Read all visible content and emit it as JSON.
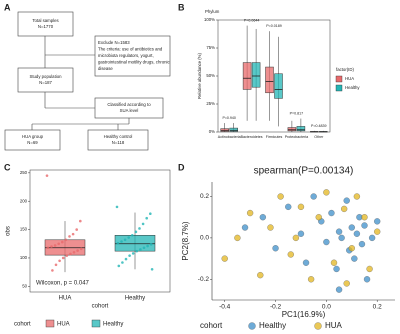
{
  "panel_labels": [
    "A",
    "B",
    "C",
    "D"
  ],
  "flowchart": {
    "nodes": [
      {
        "lines": [
          "Total samples",
          "N=1770"
        ]
      },
      {
        "lines": [
          "Exclude N=1583",
          "The criteria: use of antibiotics and",
          "microbiota regulators, yogurt,",
          "gastrointestinal motility drugs, chronic",
          "disease"
        ]
      },
      {
        "lines": [
          "Study population",
          "N=187"
        ]
      },
      {
        "lines": [
          "Classified according to",
          "SUA level"
        ]
      },
      {
        "lines": [
          "HUA group",
          "N=69"
        ]
      },
      {
        "lines": [
          "Healthy control",
          "N=118"
        ]
      }
    ]
  },
  "chart_data": [
    {
      "type": "box",
      "subtitle": "Phylum",
      "y_label": "Relative abundance (%)",
      "categories": [
        "Actinobacteria",
        "Bacteroidetes",
        "Firmicutes",
        "Proteobacteria",
        "Other"
      ],
      "annotations": [
        "P=0.940",
        "P=0.0644",
        "P=0.0189",
        "P=0.817",
        "P=0.4839"
      ],
      "series": [
        {
          "name": "HUA",
          "color": "#e8696b",
          "boxes": [
            [
              0,
              0.5,
              1.5,
              3,
              8
            ],
            [
              10,
              38,
              48,
              62,
              95
            ],
            [
              10,
              35,
              45,
              58,
              90
            ],
            [
              0,
              1,
              2,
              4,
              10
            ],
            [
              0,
              0,
              0.2,
              0.5,
              1
            ]
          ]
        },
        {
          "name": "Healthy",
          "color": "#22b5b5",
          "boxes": [
            [
              0,
              0.5,
              1.5,
              3.5,
              8
            ],
            [
              10,
              40,
              50,
              62,
              92
            ],
            [
              5,
              30,
              38,
              52,
              85
            ],
            [
              0,
              1,
              2,
              5,
              12
            ],
            [
              0,
              0,
              0.2,
              0.5,
              1
            ]
          ]
        }
      ],
      "legend_title": "factor(ID)",
      "ylim": [
        0,
        100
      ],
      "yticks": [
        {
          "value": 0,
          "label": "0%"
        },
        {
          "value": 25,
          "label": "25%"
        },
        {
          "value": 50,
          "label": "50%"
        },
        {
          "value": 75,
          "label": "75%"
        },
        {
          "value": 100,
          "label": "100%"
        }
      ]
    },
    {
      "type": "jitterbox",
      "y_label": "obs",
      "x_label": "cohort",
      "categories": [
        "HUA",
        "Healthy"
      ],
      "colors": [
        "#e8696b",
        "#22b5b5"
      ],
      "boxes": [
        [
          75,
          105,
          118,
          132,
          165
        ],
        [
          80,
          112,
          125,
          140,
          180
        ]
      ],
      "points": [
        [
          245,
          165,
          150,
          142,
          138,
          132,
          128,
          125,
          122,
          120,
          118,
          116,
          113,
          110,
          107,
          104,
          100,
          95,
          88,
          78
        ],
        [
          190,
          178,
          170,
          160,
          152,
          146,
          140,
          136,
          132,
          129,
          126,
          124,
          121,
          118,
          115,
          112,
          108,
          104,
          98,
          92,
          86,
          80
        ]
      ],
      "annotation": "Wilcoxon, p = 0.047",
      "legend_title": "cohort",
      "ylim": [
        40,
        255
      ],
      "yticks": [
        50,
        100,
        150,
        200,
        250
      ]
    },
    {
      "type": "scatter",
      "title": "spearman(P=0.00134)",
      "x_label": "PC1(16.9%)",
      "y_label": "PC2(8.7%)",
      "legend_title": "cohort",
      "series": [
        {
          "name": "Healthy",
          "color": "#3d8fc9",
          "x": [
            -0.32,
            -0.25,
            -0.2,
            -0.15,
            -0.1,
            -0.08,
            -0.05,
            -0.02,
            0.0,
            0.02,
            0.04,
            0.05,
            0.06,
            0.08,
            0.09,
            0.1,
            0.11,
            0.12,
            0.13,
            0.14,
            0.15,
            0.16,
            0.18,
            0.2,
            0.05
          ],
          "y": [
            0.05,
            0.1,
            -0.05,
            0.15,
            0.02,
            -0.12,
            0.2,
            0.08,
            -0.02,
            0.12,
            -0.15,
            0.03,
            0.0,
            0.18,
            -0.06,
            0.05,
            -0.1,
            0.02,
            0.1,
            -0.03,
            0.06,
            -0.2,
            0.0,
            0.08,
            -0.25
          ]
        },
        {
          "name": "HUA",
          "color": "#e3b51f",
          "x": [
            -0.4,
            -0.35,
            -0.3,
            -0.26,
            -0.22,
            -0.18,
            -0.14,
            -0.1,
            -0.06,
            -0.03,
            0.0,
            0.03,
            0.07,
            0.1,
            0.12,
            0.15,
            0.17,
            0.2,
            -0.12,
            0.08
          ],
          "y": [
            -0.1,
            0.0,
            0.12,
            -0.18,
            0.05,
            0.2,
            -0.08,
            0.15,
            -0.2,
            0.1,
            0.22,
            -0.12,
            0.14,
            -0.05,
            0.2,
            0.1,
            -0.15,
            0.03,
            0.0,
            -0.22
          ]
        }
      ],
      "xlim": [
        -0.45,
        0.27
      ],
      "xticks": [
        -0.4,
        -0.2,
        {
          "value": 0,
          "label": "0.0"
        },
        0.2
      ],
      "ylim": [
        -0.3,
        0.27
      ],
      "yticks": [
        -0.2,
        {
          "value": 0,
          "label": "0.0"
        },
        0.2
      ]
    }
  ]
}
